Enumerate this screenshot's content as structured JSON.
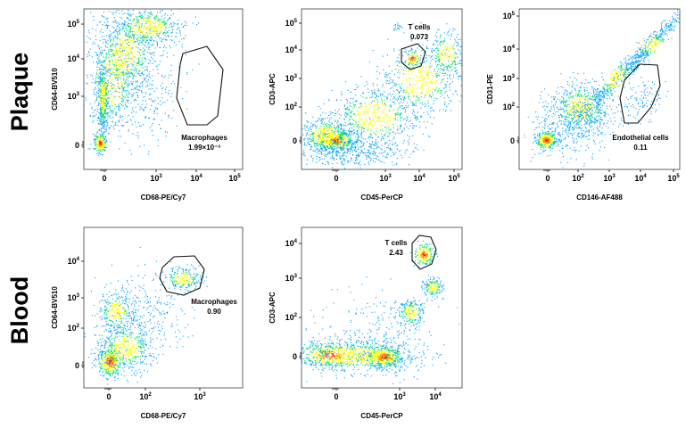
{
  "rows": [
    {
      "label": "Plaque"
    },
    {
      "label": "Blood"
    }
  ],
  "chart_data": [
    {
      "type": "scatter",
      "name": "plaque-cd68-vs-cd64",
      "xlabel": "CD68-PE/Cy7",
      "ylabel": "CD64-BV510",
      "x_ticks": [
        {
          "base": "0",
          "exp": ""
        },
        {
          "base": "10",
          "exp": "3"
        },
        {
          "base": "10",
          "exp": "4"
        },
        {
          "base": "10",
          "exp": "5"
        }
      ],
      "y_ticks": [
        {
          "base": "0",
          "exp": ""
        },
        {
          "base": "10",
          "exp": "3"
        },
        {
          "base": "10",
          "exp": "4"
        },
        {
          "base": "10",
          "exp": "5"
        }
      ],
      "gate": {
        "name": "Macrophages",
        "value": "1.99×10⁻³"
      }
    },
    {
      "type": "scatter",
      "name": "plaque-cd45-vs-cd3",
      "xlabel": "CD45-PerCP",
      "ylabel": "CD3-APC",
      "x_ticks": [
        {
          "base": "0",
          "exp": ""
        },
        {
          "base": "10",
          "exp": "3"
        },
        {
          "base": "10",
          "exp": "4"
        },
        {
          "base": "10",
          "exp": "5"
        }
      ],
      "y_ticks": [
        {
          "base": "0",
          "exp": ""
        },
        {
          "base": "10",
          "exp": "2"
        },
        {
          "base": "10",
          "exp": "3"
        },
        {
          "base": "10",
          "exp": "4"
        },
        {
          "base": "10",
          "exp": "5"
        }
      ],
      "gate": {
        "name": "T cells",
        "value": "0.073"
      }
    },
    {
      "type": "scatter",
      "name": "plaque-cd146-vs-cd31",
      "xlabel": "CD146-AF488",
      "ylabel": "CD31-PE",
      "x_ticks": [
        {
          "base": "0",
          "exp": ""
        },
        {
          "base": "10",
          "exp": "2"
        },
        {
          "base": "10",
          "exp": "3"
        },
        {
          "base": "10",
          "exp": "4"
        },
        {
          "base": "10",
          "exp": "5"
        }
      ],
      "y_ticks": [
        {
          "base": "0",
          "exp": ""
        },
        {
          "base": "10",
          "exp": "2"
        },
        {
          "base": "10",
          "exp": "3"
        },
        {
          "base": "10",
          "exp": "4"
        },
        {
          "base": "10",
          "exp": "5"
        }
      ],
      "gate": {
        "name": "Endothelial cells",
        "value": "0.11"
      }
    },
    {
      "type": "scatter",
      "name": "blood-cd68-vs-cd64",
      "xlabel": "CD68-PE/Cy7",
      "ylabel": "CD64-BV510",
      "x_ticks": [
        {
          "base": "0",
          "exp": ""
        },
        {
          "base": "10",
          "exp": "2"
        },
        {
          "base": "10",
          "exp": "3"
        }
      ],
      "y_ticks": [
        {
          "base": "0",
          "exp": ""
        },
        {
          "base": "10",
          "exp": "2"
        },
        {
          "base": "10",
          "exp": "3"
        },
        {
          "base": "10",
          "exp": "4"
        }
      ],
      "gate": {
        "name": "Macrophages",
        "value": "0.90"
      }
    },
    {
      "type": "scatter",
      "name": "blood-cd45-vs-cd3",
      "xlabel": "CD45-PerCP",
      "ylabel": "CD3-APC",
      "x_ticks": [
        {
          "base": "0",
          "exp": ""
        },
        {
          "base": "10",
          "exp": "3"
        },
        {
          "base": "10",
          "exp": "4"
        }
      ],
      "y_ticks": [
        {
          "base": "0",
          "exp": ""
        },
        {
          "base": "10",
          "exp": "2"
        },
        {
          "base": "10",
          "exp": "3"
        },
        {
          "base": "10",
          "exp": "4"
        }
      ],
      "gate": {
        "name": "T cells",
        "value": "2.43"
      }
    }
  ]
}
